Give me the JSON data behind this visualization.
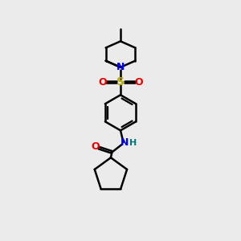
{
  "bg_color": "#ebebeb",
  "bond_color": "#000000",
  "N_color": "#0000ee",
  "O_color": "#ee0000",
  "S_color": "#bbaa00",
  "H_color": "#007777",
  "line_width": 1.8,
  "figsize": [
    3.0,
    3.0
  ],
  "dpi": 100,
  "xlim": [
    0,
    10
  ],
  "ylim": [
    0,
    10
  ]
}
